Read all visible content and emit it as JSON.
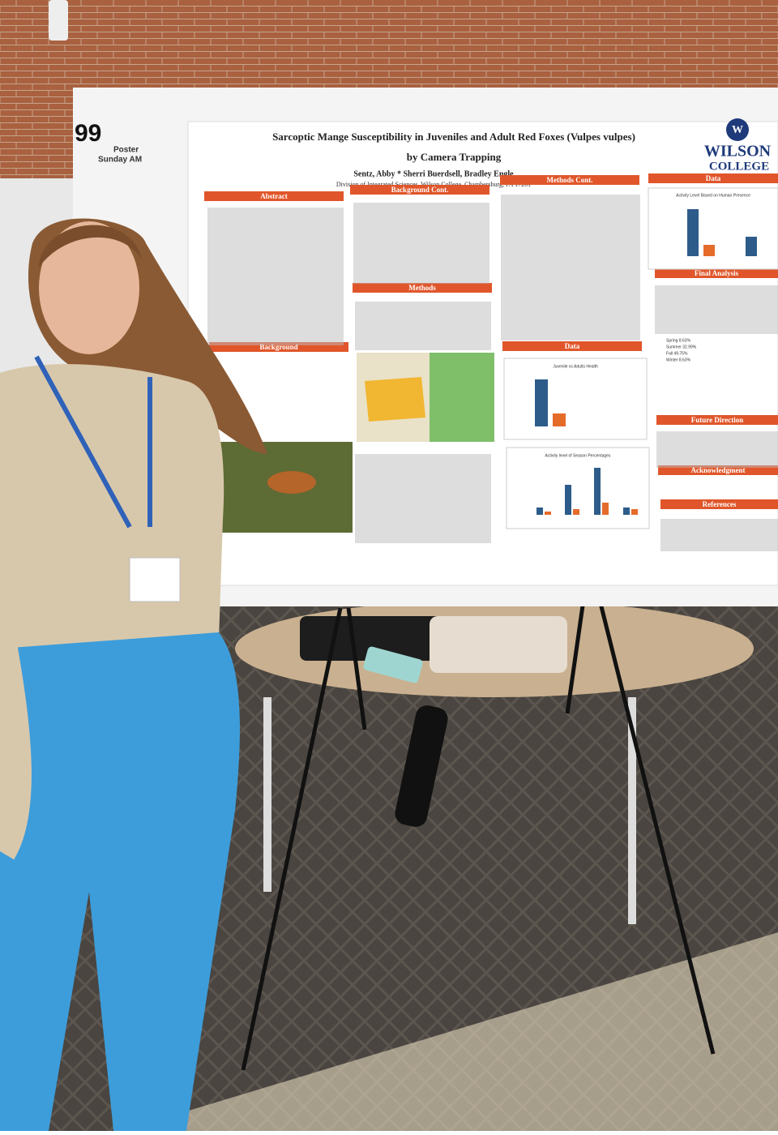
{
  "sign": {
    "number": "99",
    "line1": "Poster",
    "line2": "Sunday AM"
  },
  "poster": {
    "title_line1": "Sarcoptic Mange Susceptibility in Juveniles and Adult Red Foxes (Vulpes vulpes)",
    "title_line2": "by Camera Trapping",
    "authors": "Sentz, Abby * Sherri Buerdsell, Bradley Engle",
    "affiliation": "Division of Integrated Sciences, Wilson College, Chambersburg, PA 17201",
    "logo": [
      "W",
      "WILSON",
      "COLLEGE"
    ],
    "sections": [
      "Abstract",
      "Background",
      "Background Cont.",
      "Methods",
      "Methods Cont.",
      "Data",
      "Data",
      "Final Analysis",
      "Future Direction",
      "Acknowledgment",
      "References"
    ],
    "chart_titles": [
      "Juvenile vs Adults Health",
      "Activity level of Season Percentages",
      "Activity Level Based on Human Presence"
    ],
    "season_results": [
      "Spring 8.63%",
      "Summer 32.99%",
      "Fall 49.75%",
      "Winter 8.63%"
    ]
  }
}
